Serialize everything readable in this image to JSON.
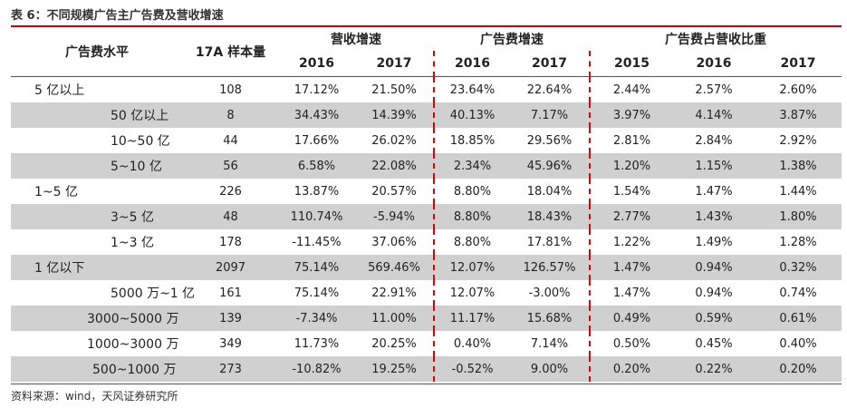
{
  "caption": "表 6：不同规模广告主广告费及营收增速",
  "headers": {
    "level": "广告费水平",
    "sample": "17A 样本量",
    "rev_growth": "营收增速",
    "ad_growth": "广告费增速",
    "ad_share": "广告费占营收比重",
    "y2016a": "2016",
    "y2017a": "2017",
    "y2016b": "2016",
    "y2017b": "2017",
    "y2015c": "2015",
    "y2016c": "2016",
    "y2017c": "2017"
  },
  "rows": [
    {
      "level": "5 亿以上",
      "indent": 0,
      "shade": false,
      "sample": "108",
      "rev2016": "17.12%",
      "rev2017": "21.50%",
      "ad2016": "23.64%",
      "ad2017": "22.64%",
      "sh2015": "2.44%",
      "sh2016": "2.57%",
      "sh2017": "2.60%"
    },
    {
      "level": "50 亿以上",
      "indent": 1,
      "shade": true,
      "sample": "8",
      "rev2016": "34.43%",
      "rev2017": "14.39%",
      "ad2016": "40.13%",
      "ad2017": "7.17%",
      "sh2015": "3.97%",
      "sh2016": "4.14%",
      "sh2017": "3.87%"
    },
    {
      "level": "10~50 亿",
      "indent": 1,
      "shade": false,
      "sample": "44",
      "rev2016": "17.66%",
      "rev2017": "26.02%",
      "ad2016": "18.85%",
      "ad2017": "29.56%",
      "sh2015": "2.81%",
      "sh2016": "2.84%",
      "sh2017": "2.92%"
    },
    {
      "level": "5~10 亿",
      "indent": 1,
      "shade": true,
      "sample": "56",
      "rev2016": "6.58%",
      "rev2017": "22.08%",
      "ad2016": "2.34%",
      "ad2017": "45.96%",
      "sh2015": "1.20%",
      "sh2016": "1.15%",
      "sh2017": "1.38%"
    },
    {
      "level": "1~5 亿",
      "indent": 0,
      "shade": false,
      "sample": "226",
      "rev2016": "13.87%",
      "rev2017": "20.57%",
      "ad2016": "8.80%",
      "ad2017": "18.04%",
      "sh2015": "1.54%",
      "sh2016": "1.47%",
      "sh2017": "1.44%"
    },
    {
      "level": "3~5 亿",
      "indent": 1,
      "shade": true,
      "sample": "48",
      "rev2016": "110.74%",
      "rev2017": "-5.94%",
      "ad2016": "8.80%",
      "ad2017": "18.43%",
      "sh2015": "2.77%",
      "sh2016": "1.43%",
      "sh2017": "1.80%"
    },
    {
      "level": "1~3 亿",
      "indent": 1,
      "shade": false,
      "sample": "178",
      "rev2016": "-11.45%",
      "rev2017": "37.06%",
      "ad2016": "8.80%",
      "ad2017": "17.81%",
      "sh2015": "1.22%",
      "sh2016": "1.49%",
      "sh2017": "1.28%"
    },
    {
      "level": "1 亿以下",
      "indent": 0,
      "shade": true,
      "sample": "2097",
      "rev2016": "75.14%",
      "rev2017": "569.46%",
      "ad2016": "12.07%",
      "ad2017": "126.57%",
      "sh2015": "1.47%",
      "sh2016": "0.94%",
      "sh2017": "0.32%"
    },
    {
      "level": "5000 万~1 亿",
      "indent": 1,
      "shade": false,
      "sample": "161",
      "rev2016": "75.14%",
      "rev2017": "22.91%",
      "ad2016": "12.07%",
      "ad2017": "-3.00%",
      "sh2015": "1.47%",
      "sh2016": "0.94%",
      "sh2017": "0.74%"
    },
    {
      "level": "3000~5000 万",
      "indent": 2,
      "shade": true,
      "sample": "139",
      "rev2016": "-7.34%",
      "rev2017": "11.00%",
      "ad2016": "11.17%",
      "ad2017": "15.68%",
      "sh2015": "0.49%",
      "sh2016": "0.59%",
      "sh2017": "0.61%"
    },
    {
      "level": "1000~3000 万",
      "indent": 2,
      "shade": false,
      "sample": "349",
      "rev2016": "11.73%",
      "rev2017": "20.25%",
      "ad2016": "0.40%",
      "ad2017": "7.14%",
      "sh2015": "0.50%",
      "sh2016": "0.45%",
      "sh2017": "0.40%"
    },
    {
      "level": "500~1000 万",
      "indent": 3,
      "shade": true,
      "sample": "273",
      "rev2016": "-10.82%",
      "rev2017": "19.25%",
      "ad2016": "-0.52%",
      "ad2017": "9.00%",
      "sh2015": "0.20%",
      "sh2016": "0.22%",
      "sh2017": "0.20%"
    }
  ],
  "source": "资料来源：wind，天风证券研究所"
}
